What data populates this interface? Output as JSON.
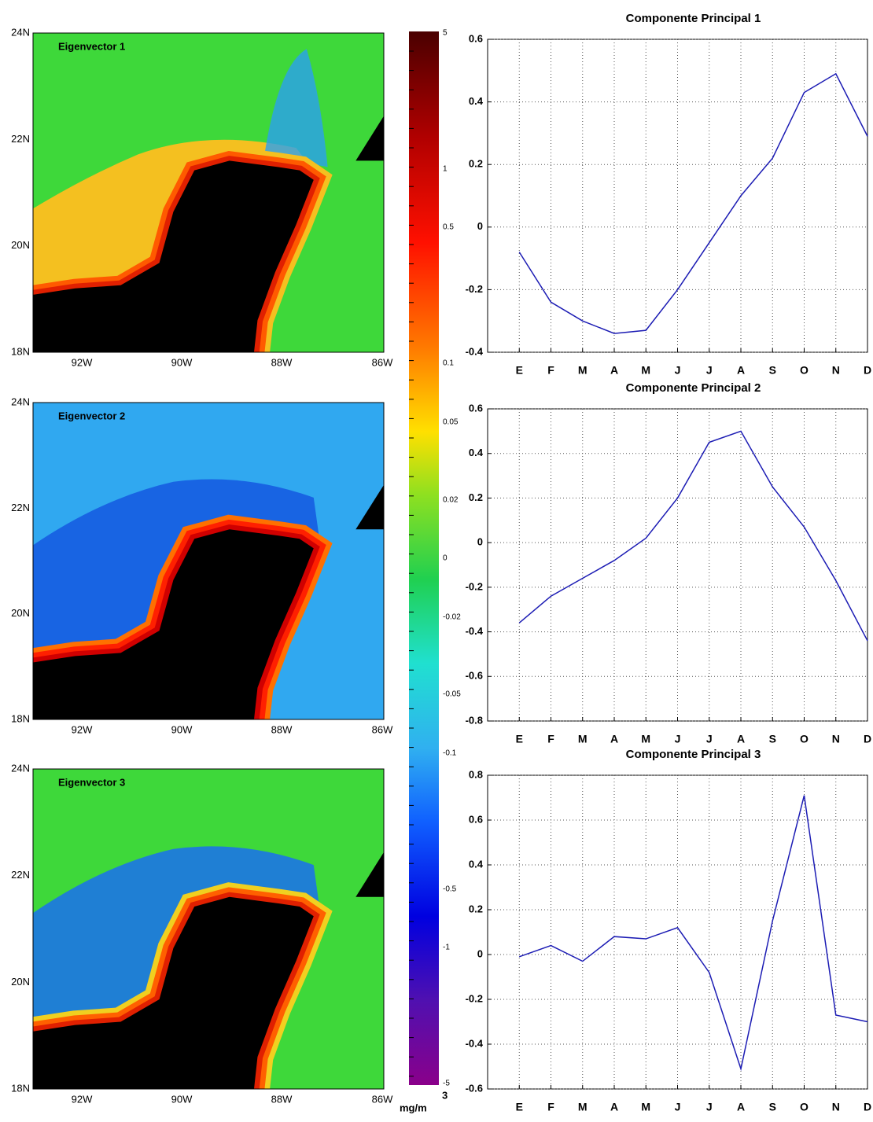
{
  "maps": [
    {
      "title": "Eigenvector 1"
    },
    {
      "title": "Eigenvector 2"
    },
    {
      "title": "Eigenvector 3"
    }
  ],
  "map_axes": {
    "lat_labels": [
      "24N",
      "22N",
      "20N",
      "18N"
    ],
    "lon_labels": [
      "92W",
      "90W",
      "88W",
      "86W"
    ]
  },
  "colorbar": {
    "labels": [
      "5",
      "1",
      "0.5",
      "0.1",
      "0.05",
      "0.02",
      "0",
      "-0.02",
      "-0.05",
      "-0.1",
      "-0.5",
      "-1",
      "-5"
    ],
    "unit": "mg/m",
    "unit_exponent": "3"
  },
  "chart_data": [
    {
      "type": "line",
      "title": "Componente Principal 1",
      "categories": [
        "E",
        "F",
        "M",
        "A",
        "M",
        "J",
        "J",
        "A",
        "S",
        "O",
        "N",
        "D"
      ],
      "series": [
        {
          "color": "#1c1cb4",
          "values": [
            -0.08,
            -0.24,
            -0.3,
            -0.34,
            -0.33,
            -0.2,
            -0.05,
            0.1,
            0.22,
            0.43,
            0.49,
            0.29
          ]
        }
      ],
      "ylim": [
        -0.4,
        0.6
      ],
      "yticks": [
        -0.4,
        -0.2,
        0,
        0.2,
        0.4,
        0.6
      ],
      "grid": true
    },
    {
      "type": "line",
      "title": "Componente Principal 2",
      "categories": [
        "E",
        "F",
        "M",
        "A",
        "M",
        "J",
        "J",
        "A",
        "S",
        "O",
        "N",
        "D"
      ],
      "series": [
        {
          "color": "#1c1cb4",
          "values": [
            -0.36,
            -0.24,
            -0.16,
            -0.08,
            0.02,
            0.2,
            0.45,
            0.5,
            0.25,
            0.07,
            -0.17,
            -0.44
          ]
        }
      ],
      "ylim": [
        -0.8,
        0.6
      ],
      "yticks": [
        -0.8,
        -0.6,
        -0.4,
        -0.2,
        0,
        0.2,
        0.4,
        0.6
      ],
      "grid": true
    },
    {
      "type": "line",
      "title": "Componente Principal 3",
      "categories": [
        "E",
        "F",
        "M",
        "A",
        "M",
        "J",
        "J",
        "A",
        "S",
        "O",
        "N",
        "D"
      ],
      "series": [
        {
          "color": "#1c1cb4",
          "values": [
            -0.01,
            0.04,
            -0.03,
            0.08,
            0.07,
            0.12,
            -0.08,
            -0.51,
            0.15,
            0.71,
            -0.27,
            -0.3
          ]
        }
      ],
      "ylim": [
        -0.6,
        0.8
      ],
      "yticks": [
        -0.6,
        -0.4,
        -0.2,
        0,
        0.2,
        0.4,
        0.6,
        0.8
      ],
      "grid": true
    }
  ]
}
